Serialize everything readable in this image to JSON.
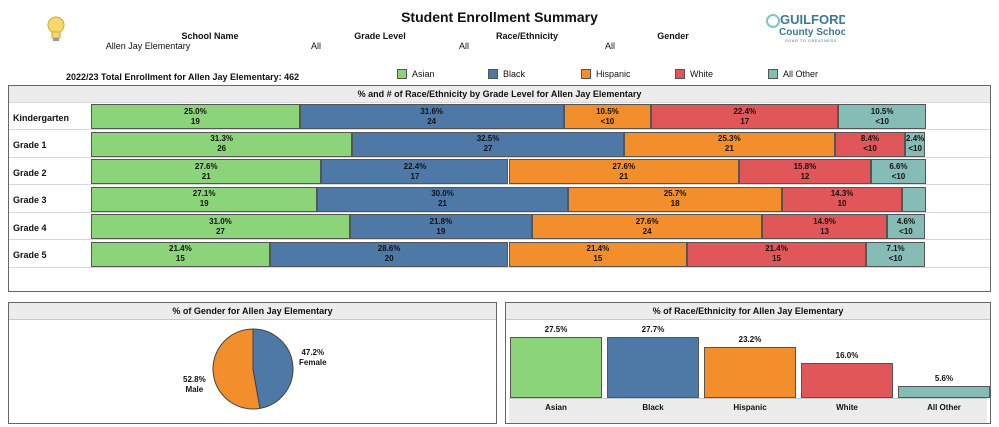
{
  "header": {
    "title": "Student Enrollment Summary",
    "filters": [
      {
        "label": "School Name",
        "value": "Allen Jay Elementary"
      },
      {
        "label": "Grade Level",
        "value": "All"
      },
      {
        "label": "Race/Ethnicity",
        "value": "All"
      },
      {
        "label": "Gender",
        "value": "All"
      }
    ],
    "logo": {
      "line1": "GUILFORD",
      "line2": "County Schools",
      "tagline": "SOAR TO GREATNESS"
    },
    "total_enrollment": "2022/23 Total Enrollment for Allen Jay Elementary: 462"
  },
  "colors": {
    "Asian": "#8bd47a",
    "Black": "#4e79a7",
    "Hispanic": "#f28e2b",
    "White": "#e15759",
    "All Other": "#86bcb6"
  },
  "chart_data": [
    {
      "type": "bar",
      "orientation": "horizontal-stacked",
      "title": "% and # of Race/Ethnicity by Grade Level for Allen Jay Elementary",
      "categories": [
        "Kindergarten",
        "Grade 1",
        "Grade 2",
        "Grade 3",
        "Grade 4",
        "Grade 5"
      ],
      "series": [
        {
          "name": "Asian",
          "values": [
            25.0,
            31.3,
            27.6,
            27.1,
            31.0,
            21.4
          ],
          "pct_labels": [
            "25.0%",
            "31.3%",
            "27.6%",
            "27.1%",
            "31.0%",
            "21.4%"
          ],
          "counts": [
            "19",
            "26",
            "21",
            "19",
            "27",
            "15"
          ]
        },
        {
          "name": "Black",
          "values": [
            31.6,
            32.5,
            22.4,
            30.0,
            21.8,
            28.6
          ],
          "pct_labels": [
            "31.6%",
            "32.5%",
            "22.4%",
            "30.0%",
            "21.8%",
            "28.6%"
          ],
          "counts": [
            "24",
            "27",
            "17",
            "21",
            "19",
            "20"
          ]
        },
        {
          "name": "Hispanic",
          "values": [
            10.5,
            25.3,
            27.6,
            25.7,
            27.6,
            21.4
          ],
          "pct_labels": [
            "10.5%",
            "25.3%",
            "27.6%",
            "25.7%",
            "27.6%",
            "21.4%"
          ],
          "counts": [
            "<10",
            "21",
            "21",
            "18",
            "24",
            "15"
          ]
        },
        {
          "name": "White",
          "values": [
            22.4,
            8.4,
            15.8,
            14.3,
            14.9,
            21.4
          ],
          "pct_labels": [
            "22.4%",
            "8.4%",
            "15.8%",
            "14.3%",
            "14.9%",
            "21.4%"
          ],
          "counts": [
            "17",
            "<10",
            "12",
            "10",
            "13",
            "15"
          ]
        },
        {
          "name": "All Other",
          "values": [
            10.5,
            2.4,
            6.6,
            2.9,
            4.6,
            7.1
          ],
          "pct_labels": [
            "10.5%",
            "2.4%",
            "6.6%",
            "",
            "4.6%",
            "7.1%"
          ],
          "counts": [
            "<10",
            "<10",
            "<10",
            "",
            "<10",
            "<10"
          ]
        }
      ],
      "legend": "top"
    },
    {
      "type": "pie",
      "title": "% of Gender for Allen Jay Elementary",
      "slices": [
        {
          "name": "Female",
          "value": 47.2,
          "label": "47.2%",
          "color": "#4e79a7"
        },
        {
          "name": "Male",
          "value": 52.8,
          "label": "52.8%",
          "color": "#f28e2b"
        }
      ]
    },
    {
      "type": "bar",
      "title": "% of Race/Ethnicity for Allen Jay Elementary",
      "categories": [
        "Asian",
        "Black",
        "Hispanic",
        "White",
        "All Other"
      ],
      "values": [
        27.5,
        27.7,
        23.2,
        16.0,
        5.6
      ],
      "value_labels": [
        "27.5%",
        "27.7%",
        "23.2%",
        "16.0%",
        "5.6%"
      ],
      "ylim": [
        0,
        27.7
      ]
    }
  ]
}
